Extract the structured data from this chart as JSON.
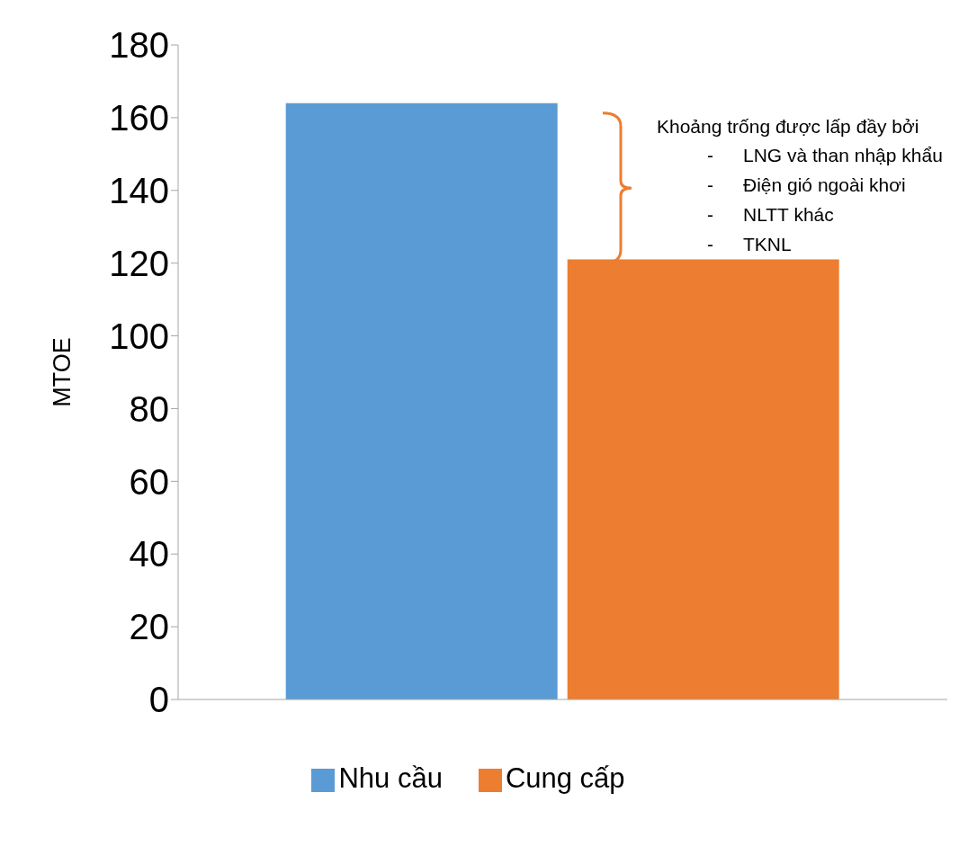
{
  "chart_data": {
    "type": "bar",
    "ylabel": "MTOE",
    "categories": [
      null
    ],
    "series": [
      {
        "name": "Nhu cầu",
        "color": "#5b9bd5",
        "values": [
          164
        ]
      },
      {
        "name": "Cung cấp",
        "color": "#ed7d31",
        "values": [
          121
        ]
      }
    ],
    "ylim": [
      0,
      180
    ],
    "yticks": [
      0,
      20,
      40,
      60,
      80,
      100,
      120,
      140,
      160,
      180
    ],
    "grid": false,
    "legend": "bottom",
    "annotations": [
      "Khoảng trống được lấp đầy bởi",
      "-",
      "LNG và than nhập khẩu",
      "-",
      "Điện gió ngoài khơi",
      "-",
      "NLTT khác",
      "-",
      "TKNL"
    ]
  }
}
